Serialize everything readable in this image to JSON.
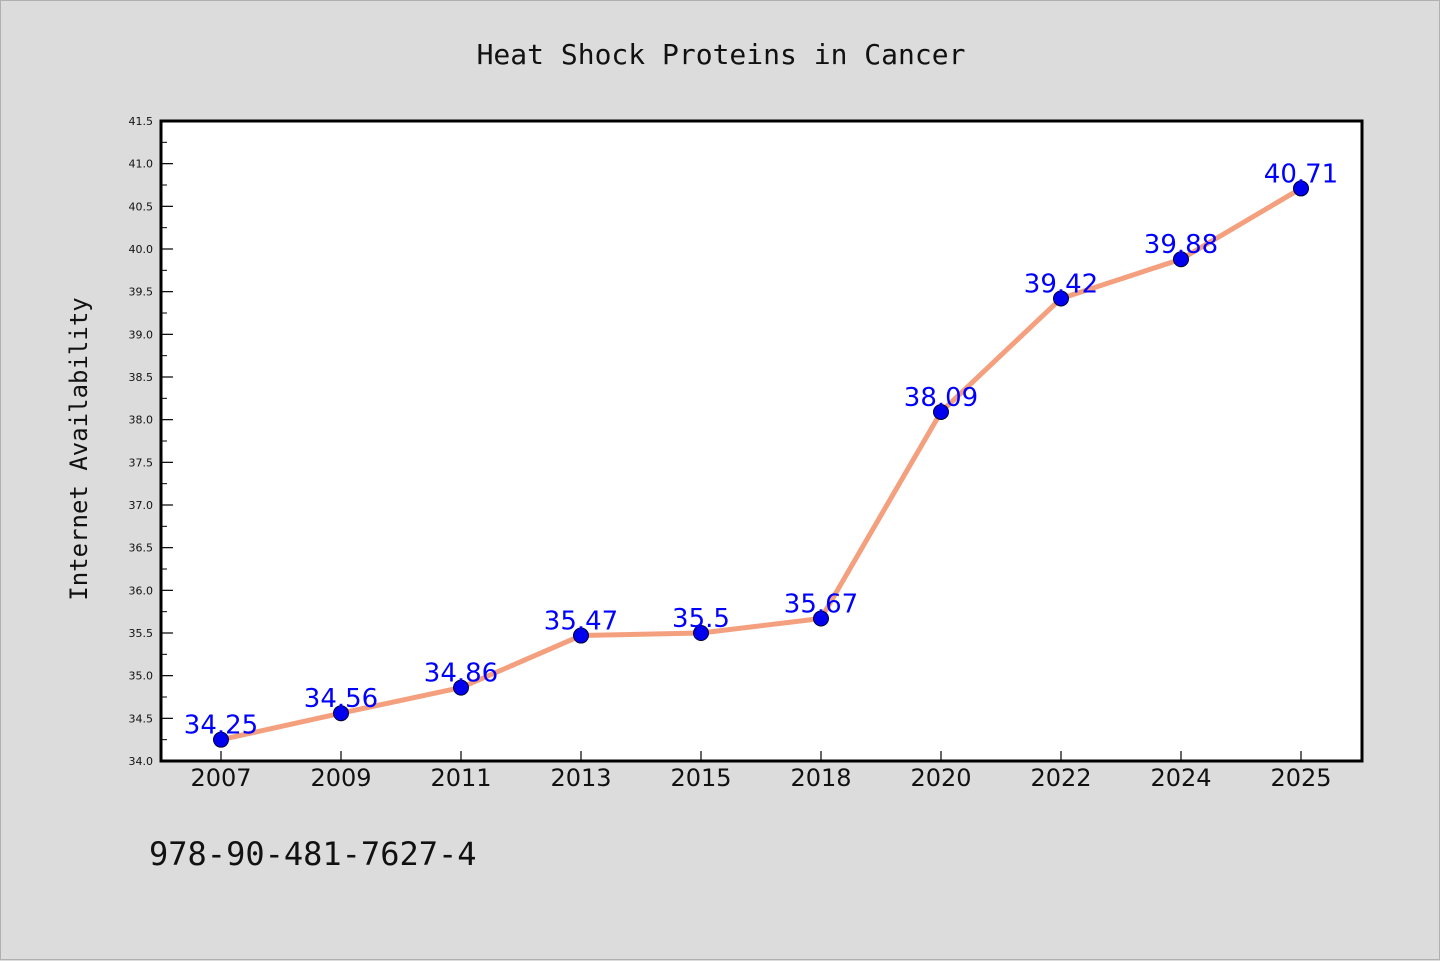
{
  "chart_data": {
    "type": "line",
    "title": "Heat Shock Proteins in Cancer",
    "xlabel": "",
    "ylabel": "Internet Availability",
    "categories": [
      "2007",
      "2009",
      "2011",
      "2013",
      "2015",
      "2018",
      "2020",
      "2022",
      "2024",
      "2025"
    ],
    "series": [
      {
        "values": [
          34.25,
          34.56,
          34.86,
          35.47,
          35.5,
          35.67,
          38.09,
          39.42,
          39.88,
          40.71
        ],
        "data_labels": [
          "34.25",
          "34.56",
          "34.86",
          "35.47",
          "35.5",
          "35.67",
          "38.09",
          "39.42",
          "39.88",
          "40.71"
        ]
      }
    ],
    "ylim": [
      34.0,
      41.5
    ],
    "yticks": [
      "34.0",
      "34.5",
      "35.0",
      "35.5",
      "36.0",
      "36.5",
      "37.0",
      "37.5",
      "38.0",
      "38.5",
      "39.0",
      "39.5",
      "40.0",
      "40.5",
      "41.0",
      "41.5"
    ],
    "grid": false,
    "legend": "none",
    "colors": {
      "line": "#f4a07e",
      "marker": "#0000ee",
      "label": "#0000ff",
      "background": "#dcdcdc",
      "plot_background": "#ffffff"
    }
  },
  "footer": {
    "isbn": "978-90-481-7627-4"
  }
}
